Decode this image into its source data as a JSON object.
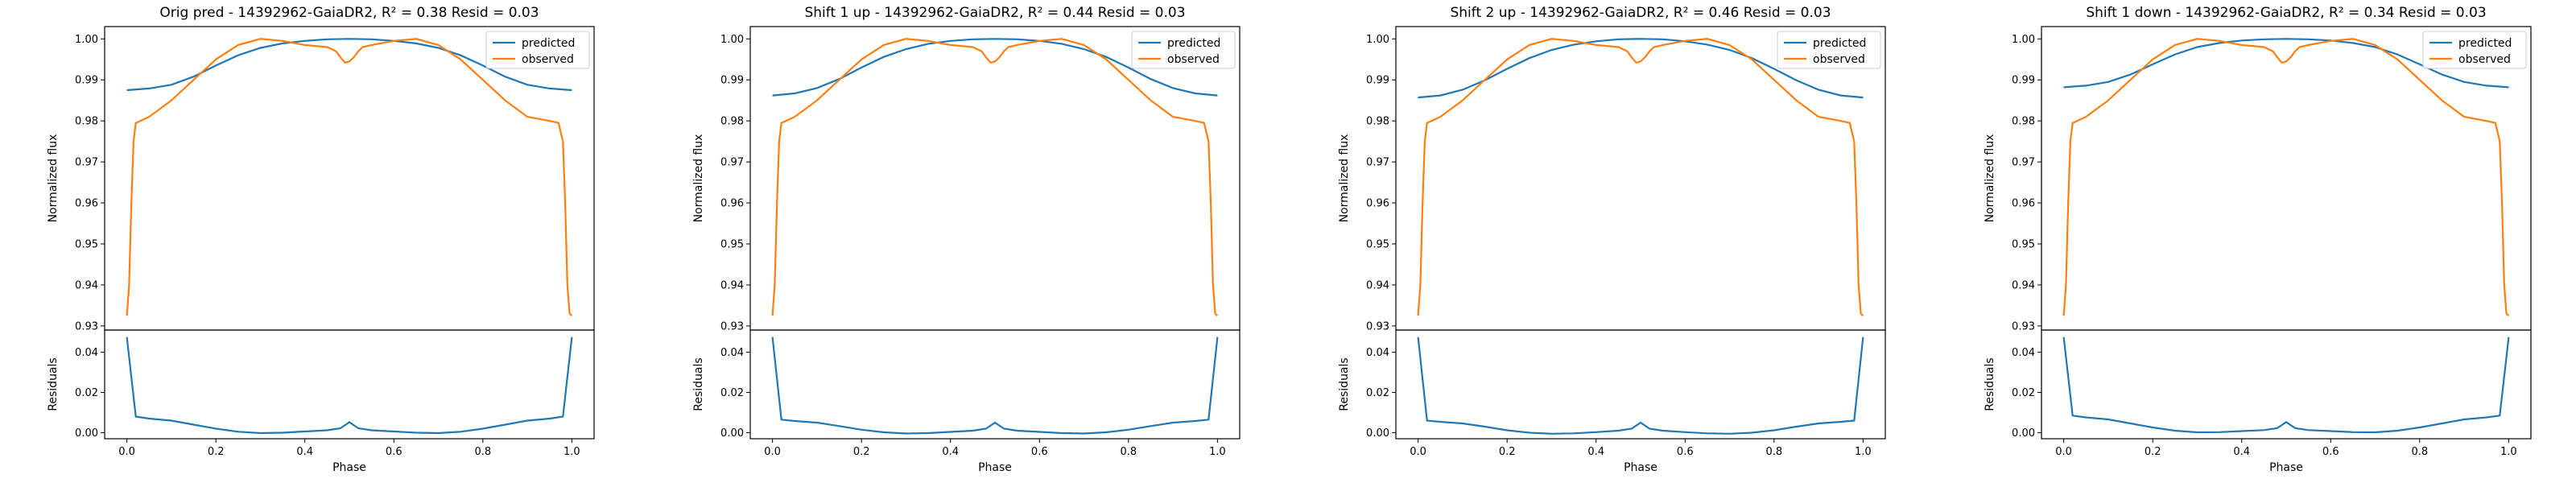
{
  "figure": {
    "colors": {
      "predicted": "#1f77b4",
      "observed": "#ff7f0e",
      "frame": "#000000",
      "legend_border": "#cccccc"
    }
  },
  "chart_data": [
    {
      "type": "line",
      "title": "Orig pred - 14392962-GaiaDR2, R² = 0.38 Resid = 0.03",
      "xlabel": "Phase",
      "ylabel_top": "Normalized flux",
      "ylabel_bottom": "Residuals",
      "xlim": [
        -0.05,
        1.05
      ],
      "ylim_top": [
        0.929,
        1.003
      ],
      "ylim_bottom": [
        -0.003,
        0.051
      ],
      "xticks": [
        "0.0",
        "0.2",
        "0.4",
        "0.6",
        "0.8",
        "1.0"
      ],
      "yticks_top": [
        "0.93",
        "0.94",
        "0.95",
        "0.96",
        "0.97",
        "0.98",
        "0.99",
        "1.00"
      ],
      "yticks_bottom": [
        "0.00",
        "0.02",
        "0.04"
      ],
      "legend": {
        "position": "top-right",
        "entries": [
          "predicted",
          "observed"
        ]
      },
      "predicted": {
        "x": [
          0.0,
          0.05,
          0.1,
          0.15,
          0.2,
          0.25,
          0.3,
          0.35,
          0.4,
          0.45,
          0.5,
          0.55,
          0.6,
          0.65,
          0.7,
          0.75,
          0.8,
          0.85,
          0.9,
          0.95,
          1.0
        ],
        "y": [
          0.9875,
          0.9879,
          0.9888,
          0.9908,
          0.9935,
          0.996,
          0.9978,
          0.9989,
          0.9995,
          0.9999,
          1.0,
          0.9999,
          0.9995,
          0.9989,
          0.9978,
          0.996,
          0.9935,
          0.9908,
          0.9888,
          0.9879,
          0.9875
        ]
      },
      "residuals": {
        "x": [
          0.0,
          0.02,
          0.05,
          0.1,
          0.15,
          0.2,
          0.25,
          0.3,
          0.35,
          0.4,
          0.45,
          0.48,
          0.5,
          0.52,
          0.55,
          0.6,
          0.65,
          0.7,
          0.75,
          0.8,
          0.85,
          0.9,
          0.95,
          0.98,
          1.0
        ],
        "y": [
          0.0475,
          0.008,
          0.007,
          0.006,
          0.004,
          0.002,
          0.0005,
          -0.0002,
          0.0,
          0.0006,
          0.0012,
          0.0022,
          0.0052,
          0.0022,
          0.0012,
          0.0006,
          0.0,
          -0.0002,
          0.0005,
          0.002,
          0.004,
          0.006,
          0.007,
          0.008,
          0.0475
        ]
      }
    },
    {
      "type": "line",
      "title": "Shift 1 up - 14392962-GaiaDR2, R² = 0.44 Resid = 0.03",
      "xlabel": "Phase",
      "ylabel_top": "Normalized flux",
      "ylabel_bottom": "Residuals",
      "xlim": [
        -0.05,
        1.05
      ],
      "ylim_top": [
        0.929,
        1.003
      ],
      "ylim_bottom": [
        -0.003,
        0.051
      ],
      "xticks": [
        "0.0",
        "0.2",
        "0.4",
        "0.6",
        "0.8",
        "1.0"
      ],
      "yticks_top": [
        "0.93",
        "0.94",
        "0.95",
        "0.96",
        "0.97",
        "0.98",
        "0.99",
        "1.00"
      ],
      "yticks_bottom": [
        "0.00",
        "0.02",
        "0.04"
      ],
      "legend": {
        "position": "top-right",
        "entries": [
          "predicted",
          "observed"
        ]
      },
      "predicted": {
        "x": [
          0.0,
          0.05,
          0.1,
          0.15,
          0.2,
          0.25,
          0.3,
          0.35,
          0.4,
          0.45,
          0.5,
          0.55,
          0.6,
          0.65,
          0.7,
          0.75,
          0.8,
          0.85,
          0.9,
          0.95,
          1.0
        ],
        "y": [
          0.9862,
          0.9867,
          0.988,
          0.9902,
          0.993,
          0.9956,
          0.9975,
          0.9988,
          0.9995,
          0.9999,
          1.0,
          0.9999,
          0.9995,
          0.9988,
          0.9975,
          0.9956,
          0.993,
          0.9902,
          0.988,
          0.9867,
          0.9862
        ]
      },
      "residuals": {
        "x": [
          0.0,
          0.02,
          0.05,
          0.1,
          0.15,
          0.2,
          0.25,
          0.3,
          0.35,
          0.4,
          0.45,
          0.48,
          0.5,
          0.52,
          0.55,
          0.6,
          0.65,
          0.7,
          0.75,
          0.8,
          0.85,
          0.9,
          0.95,
          0.98,
          1.0
        ],
        "y": [
          0.0475,
          0.0065,
          0.0058,
          0.005,
          0.0033,
          0.0015,
          0.0002,
          -0.0004,
          -0.0002,
          0.0004,
          0.001,
          0.002,
          0.005,
          0.002,
          0.001,
          0.0004,
          -0.0002,
          -0.0004,
          0.0002,
          0.0015,
          0.0033,
          0.005,
          0.0058,
          0.0065,
          0.0475
        ]
      }
    },
    {
      "type": "line",
      "title": "Shift 2 up - 14392962-GaiaDR2, R² = 0.46 Resid = 0.03",
      "xlabel": "Phase",
      "ylabel_top": "Normalized flux",
      "ylabel_bottom": "Residuals",
      "xlim": [
        -0.05,
        1.05
      ],
      "ylim_top": [
        0.929,
        1.003
      ],
      "ylim_bottom": [
        -0.003,
        0.051
      ],
      "xticks": [
        "0.0",
        "0.2",
        "0.4",
        "0.6",
        "0.8",
        "1.0"
      ],
      "yticks_top": [
        "0.93",
        "0.94",
        "0.95",
        "0.96",
        "0.97",
        "0.98",
        "0.99",
        "1.00"
      ],
      "yticks_bottom": [
        "0.00",
        "0.02",
        "0.04"
      ],
      "legend": {
        "position": "top-right",
        "entries": [
          "predicted",
          "observed"
        ]
      },
      "predicted": {
        "x": [
          0.0,
          0.05,
          0.1,
          0.15,
          0.2,
          0.25,
          0.3,
          0.35,
          0.4,
          0.45,
          0.5,
          0.55,
          0.6,
          0.65,
          0.7,
          0.75,
          0.8,
          0.85,
          0.9,
          0.95,
          1.0
        ],
        "y": [
          0.9857,
          0.9862,
          0.9876,
          0.9899,
          0.9927,
          0.9953,
          0.9973,
          0.9986,
          0.9994,
          0.9999,
          1.0,
          0.9999,
          0.9994,
          0.9986,
          0.9973,
          0.9953,
          0.9927,
          0.9899,
          0.9876,
          0.9862,
          0.9857
        ]
      },
      "residuals": {
        "x": [
          0.0,
          0.02,
          0.05,
          0.1,
          0.15,
          0.2,
          0.25,
          0.3,
          0.35,
          0.4,
          0.45,
          0.48,
          0.5,
          0.52,
          0.55,
          0.6,
          0.65,
          0.7,
          0.75,
          0.8,
          0.85,
          0.9,
          0.95,
          0.98,
          1.0
        ],
        "y": [
          0.0475,
          0.006,
          0.0054,
          0.0046,
          0.003,
          0.0012,
          0.0,
          -0.0005,
          -0.0003,
          0.0003,
          0.001,
          0.002,
          0.005,
          0.002,
          0.001,
          0.0003,
          -0.0003,
          -0.0005,
          0.0,
          0.0012,
          0.003,
          0.0046,
          0.0054,
          0.006,
          0.0475
        ]
      }
    },
    {
      "type": "line",
      "title": "Shift 1 down - 14392962-GaiaDR2, R² = 0.34 Resid = 0.03",
      "xlabel": "Phase",
      "ylabel_top": "Normalized flux",
      "ylabel_bottom": "Residuals",
      "xlim": [
        -0.05,
        1.05
      ],
      "ylim_top": [
        0.929,
        1.003
      ],
      "ylim_bottom": [
        -0.003,
        0.051
      ],
      "xticks": [
        "0.0",
        "0.2",
        "0.4",
        "0.6",
        "0.8",
        "1.0"
      ],
      "yticks_top": [
        "0.93",
        "0.94",
        "0.95",
        "0.96",
        "0.97",
        "0.98",
        "0.99",
        "1.00"
      ],
      "yticks_bottom": [
        "0.00",
        "0.02",
        "0.04"
      ],
      "legend": {
        "position": "top-right",
        "entries": [
          "predicted",
          "observed"
        ]
      },
      "predicted": {
        "x": [
          0.0,
          0.05,
          0.1,
          0.15,
          0.2,
          0.25,
          0.3,
          0.35,
          0.4,
          0.45,
          0.5,
          0.55,
          0.6,
          0.65,
          0.7,
          0.75,
          0.8,
          0.85,
          0.9,
          0.95,
          1.0
        ],
        "y": [
          0.9882,
          0.9886,
          0.9895,
          0.9913,
          0.9938,
          0.9962,
          0.998,
          0.999,
          0.9996,
          0.9999,
          1.0,
          0.9999,
          0.9996,
          0.999,
          0.998,
          0.9962,
          0.9938,
          0.9913,
          0.9895,
          0.9886,
          0.9882
        ]
      },
      "residuals": {
        "x": [
          0.0,
          0.02,
          0.05,
          0.1,
          0.15,
          0.2,
          0.25,
          0.3,
          0.35,
          0.4,
          0.45,
          0.48,
          0.5,
          0.52,
          0.55,
          0.6,
          0.65,
          0.7,
          0.75,
          0.8,
          0.85,
          0.9,
          0.95,
          0.98,
          1.0
        ],
        "y": [
          0.0475,
          0.0085,
          0.0076,
          0.0066,
          0.0046,
          0.0026,
          0.001,
          0.0002,
          0.0003,
          0.0008,
          0.0013,
          0.0023,
          0.0053,
          0.0023,
          0.0013,
          0.0008,
          0.0003,
          0.0002,
          0.001,
          0.0026,
          0.0046,
          0.0066,
          0.0076,
          0.0085,
          0.0475
        ]
      }
    }
  ],
  "observed_curve": {
    "x": [
      0.0,
      0.005,
      0.01,
      0.015,
      0.02,
      0.03,
      0.05,
      0.1,
      0.15,
      0.2,
      0.25,
      0.3,
      0.35,
      0.4,
      0.45,
      0.47,
      0.48,
      0.49,
      0.5,
      0.51,
      0.52,
      0.53,
      0.55,
      0.6,
      0.65,
      0.7,
      0.75,
      0.8,
      0.85,
      0.9,
      0.95,
      0.97,
      0.98,
      0.985,
      0.99,
      0.995,
      1.0
    ],
    "y": [
      0.9325,
      0.94,
      0.96,
      0.975,
      0.9795,
      0.98,
      0.981,
      0.985,
      0.99,
      0.995,
      0.9985,
      1.0,
      0.9995,
      0.9985,
      0.998,
      0.997,
      0.9955,
      0.9942,
      0.9945,
      0.9955,
      0.997,
      0.998,
      0.9985,
      0.9995,
      1.0,
      0.9985,
      0.995,
      0.99,
      0.985,
      0.981,
      0.98,
      0.9795,
      0.975,
      0.96,
      0.94,
      0.933,
      0.9325
    ]
  }
}
